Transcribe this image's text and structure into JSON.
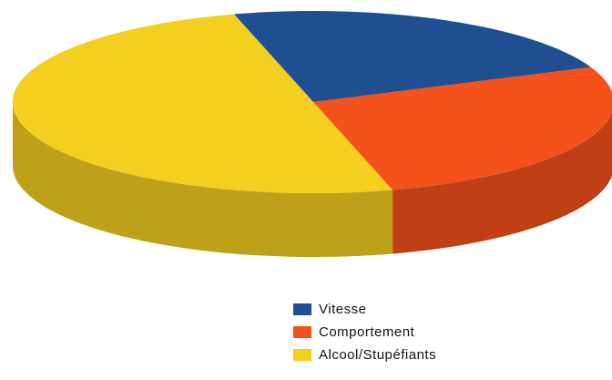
{
  "chart_data": {
    "type": "pie",
    "style": "3d",
    "title": "",
    "slices": [
      {
        "label": "Vitesse",
        "value": 23,
        "color": "#1f4e91"
      },
      {
        "label": "Comportement",
        "value": 27,
        "color": "#f4521a"
      },
      {
        "label": "Alcool/Stupéfiants",
        "value": 50,
        "color": "#f4cf1f"
      }
    ],
    "legend": {
      "position": "bottom-right"
    },
    "legend_items": [
      "Vitesse",
      "Comportement",
      "Alcool/Stupéfiants"
    ]
  }
}
